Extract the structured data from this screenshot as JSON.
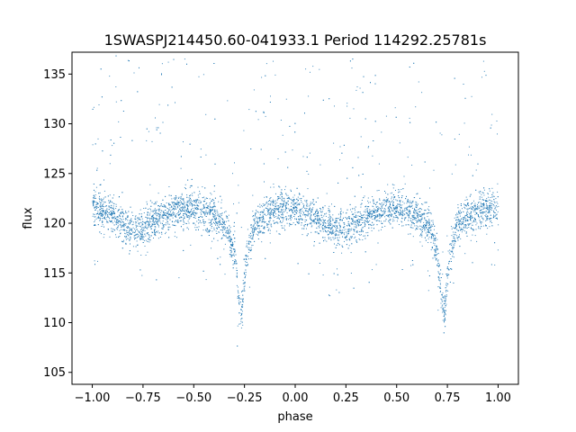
{
  "chart_data": {
    "type": "scatter",
    "title": "1SWASPJ214450.60-041933.1 Period 114292.25781s",
    "xlabel": "phase",
    "ylabel": "flux",
    "xlim": [
      -1.1,
      1.1
    ],
    "ylim": [
      103.8,
      137.2
    ],
    "xticks": [
      -1.0,
      -0.75,
      -0.5,
      -0.25,
      0.0,
      0.25,
      0.5,
      0.75,
      1.0
    ],
    "xtick_labels": [
      "−1.00",
      "−0.75",
      "−0.50",
      "−0.25",
      "0.00",
      "0.25",
      "0.50",
      "0.75",
      "1.00"
    ],
    "yticks": [
      105,
      110,
      115,
      120,
      125,
      130,
      135
    ],
    "ytick_labels": [
      "105",
      "110",
      "115",
      "120",
      "125",
      "130",
      "135"
    ],
    "grid": false,
    "marker_color": "#1f77b4",
    "series": [
      {
        "description_points": [
          [
            -1.0,
            121.5
          ],
          [
            -0.9,
            121.0
          ],
          [
            -0.85,
            120.0
          ],
          [
            -0.8,
            119.3
          ],
          [
            -0.75,
            119.5
          ],
          [
            -0.7,
            120.2
          ],
          [
            -0.6,
            121.3
          ],
          [
            -0.5,
            121.5
          ],
          [
            -0.4,
            120.8
          ],
          [
            -0.34,
            119.5
          ],
          [
            -0.3,
            117.0
          ],
          [
            -0.28,
            112.5
          ],
          [
            -0.27,
            110.5
          ],
          [
            -0.26,
            112.5
          ],
          [
            -0.24,
            117.0
          ],
          [
            -0.2,
            120.0
          ],
          [
            -0.1,
            121.5
          ],
          [
            0.0,
            121.5
          ],
          [
            0.1,
            120.5
          ],
          [
            0.2,
            119.3
          ],
          [
            0.25,
            119.5
          ],
          [
            0.3,
            120.2
          ],
          [
            0.4,
            121.3
          ],
          [
            0.5,
            121.5
          ],
          [
            0.6,
            120.8
          ],
          [
            0.66,
            119.5
          ],
          [
            0.7,
            117.0
          ],
          [
            0.72,
            112.5
          ],
          [
            0.73,
            110.5
          ],
          [
            0.74,
            112.5
          ],
          [
            0.76,
            117.0
          ],
          [
            0.8,
            120.0
          ],
          [
            0.9,
            121.2
          ],
          [
            1.0,
            121.5
          ]
        ]
      }
    ]
  }
}
